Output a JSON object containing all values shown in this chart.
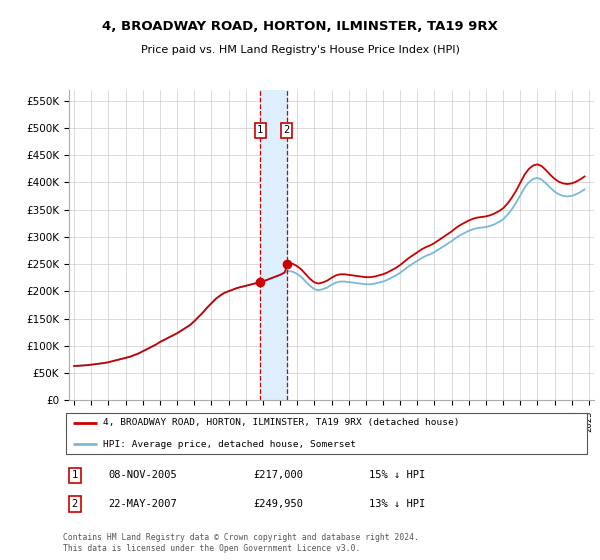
{
  "title": "4, BROADWAY ROAD, HORTON, ILMINSTER, TA19 9RX",
  "subtitle": "Price paid vs. HM Land Registry's House Price Index (HPI)",
  "ylim": [
    0,
    570000
  ],
  "yticks": [
    0,
    50000,
    100000,
    150000,
    200000,
    250000,
    300000,
    350000,
    400000,
    450000,
    500000,
    550000
  ],
  "ytick_labels": [
    "£0",
    "£50K",
    "£100K",
    "£150K",
    "£200K",
    "£250K",
    "£300K",
    "£350K",
    "£400K",
    "£450K",
    "£500K",
    "£550K"
  ],
  "hpi_x": [
    1995.0,
    1995.25,
    1995.5,
    1995.75,
    1996.0,
    1996.25,
    1996.5,
    1996.75,
    1997.0,
    1997.25,
    1997.5,
    1997.75,
    1998.0,
    1998.25,
    1998.5,
    1998.75,
    1999.0,
    1999.25,
    1999.5,
    1999.75,
    2000.0,
    2000.25,
    2000.5,
    2000.75,
    2001.0,
    2001.25,
    2001.5,
    2001.75,
    2002.0,
    2002.25,
    2002.5,
    2002.75,
    2003.0,
    2003.25,
    2003.5,
    2003.75,
    2004.0,
    2004.25,
    2004.5,
    2004.75,
    2005.0,
    2005.25,
    2005.5,
    2005.75,
    2006.0,
    2006.25,
    2006.5,
    2006.75,
    2007.0,
    2007.25,
    2007.5,
    2007.75,
    2008.0,
    2008.25,
    2008.5,
    2008.75,
    2009.0,
    2009.25,
    2009.5,
    2009.75,
    2010.0,
    2010.25,
    2010.5,
    2010.75,
    2011.0,
    2011.25,
    2011.5,
    2011.75,
    2012.0,
    2012.25,
    2012.5,
    2012.75,
    2013.0,
    2013.25,
    2013.5,
    2013.75,
    2014.0,
    2014.25,
    2014.5,
    2014.75,
    2015.0,
    2015.25,
    2015.5,
    2015.75,
    2016.0,
    2016.25,
    2016.5,
    2016.75,
    2017.0,
    2017.25,
    2017.5,
    2017.75,
    2018.0,
    2018.25,
    2018.5,
    2018.75,
    2019.0,
    2019.25,
    2019.5,
    2019.75,
    2020.0,
    2020.25,
    2020.5,
    2020.75,
    2021.0,
    2021.25,
    2021.5,
    2021.75,
    2022.0,
    2022.25,
    2022.5,
    2022.75,
    2023.0,
    2023.25,
    2023.5,
    2023.75,
    2024.0,
    2024.25,
    2024.5,
    2024.75
  ],
  "hpi_y": [
    63000,
    63500,
    64000,
    64500,
    65500,
    66500,
    67500,
    68500,
    70000,
    72000,
    74000,
    76000,
    78000,
    80000,
    83000,
    86000,
    90000,
    94000,
    98000,
    102000,
    107000,
    111000,
    115000,
    119000,
    123000,
    128000,
    133000,
    138000,
    145000,
    153000,
    161000,
    170000,
    178000,
    186000,
    192000,
    197000,
    200000,
    203000,
    206000,
    208000,
    210000,
    212000,
    214000,
    216000,
    218000,
    221000,
    224000,
    227000,
    230000,
    234000,
    237000,
    236000,
    232000,
    226000,
    218000,
    210000,
    204000,
    202000,
    204000,
    207000,
    212000,
    216000,
    218000,
    218000,
    217000,
    216000,
    215000,
    214000,
    213000,
    213000,
    214000,
    216000,
    218000,
    221000,
    225000,
    229000,
    234000,
    240000,
    246000,
    251000,
    256000,
    261000,
    265000,
    268000,
    272000,
    277000,
    282000,
    287000,
    292000,
    298000,
    303000,
    307000,
    311000,
    314000,
    316000,
    317000,
    318000,
    320000,
    323000,
    327000,
    332000,
    340000,
    350000,
    362000,
    376000,
    390000,
    400000,
    406000,
    408000,
    405000,
    398000,
    390000,
    383000,
    378000,
    375000,
    374000,
    375000,
    378000,
    382000,
    387000
  ],
  "s1_year": 2005.85,
  "s1_price": 217000,
  "s2_year": 2007.38,
  "s2_price": 249950,
  "hpi_color": "#7ab8d9",
  "price_color": "#cc0000",
  "vline_color": "#cc0000",
  "highlight_color": "#ddeeff",
  "sale1_date": "08-NOV-2005",
  "sale1_price": "£217,000",
  "sale1_hpi": "15% ↓ HPI",
  "sale2_date": "22-MAY-2007",
  "sale2_price": "£249,950",
  "sale2_hpi": "13% ↓ HPI",
  "legend_label1": "4, BROADWAY ROAD, HORTON, ILMINSTER, TA19 9RX (detached house)",
  "legend_label2": "HPI: Average price, detached house, Somerset",
  "footer": "Contains HM Land Registry data © Crown copyright and database right 2024.\nThis data is licensed under the Open Government Licence v3.0.",
  "xtick_years": [
    1995,
    1996,
    1997,
    1998,
    1999,
    2000,
    2001,
    2002,
    2003,
    2004,
    2005,
    2006,
    2007,
    2008,
    2009,
    2010,
    2011,
    2012,
    2013,
    2014,
    2015,
    2016,
    2017,
    2018,
    2019,
    2020,
    2021,
    2022,
    2023,
    2024,
    2025
  ]
}
